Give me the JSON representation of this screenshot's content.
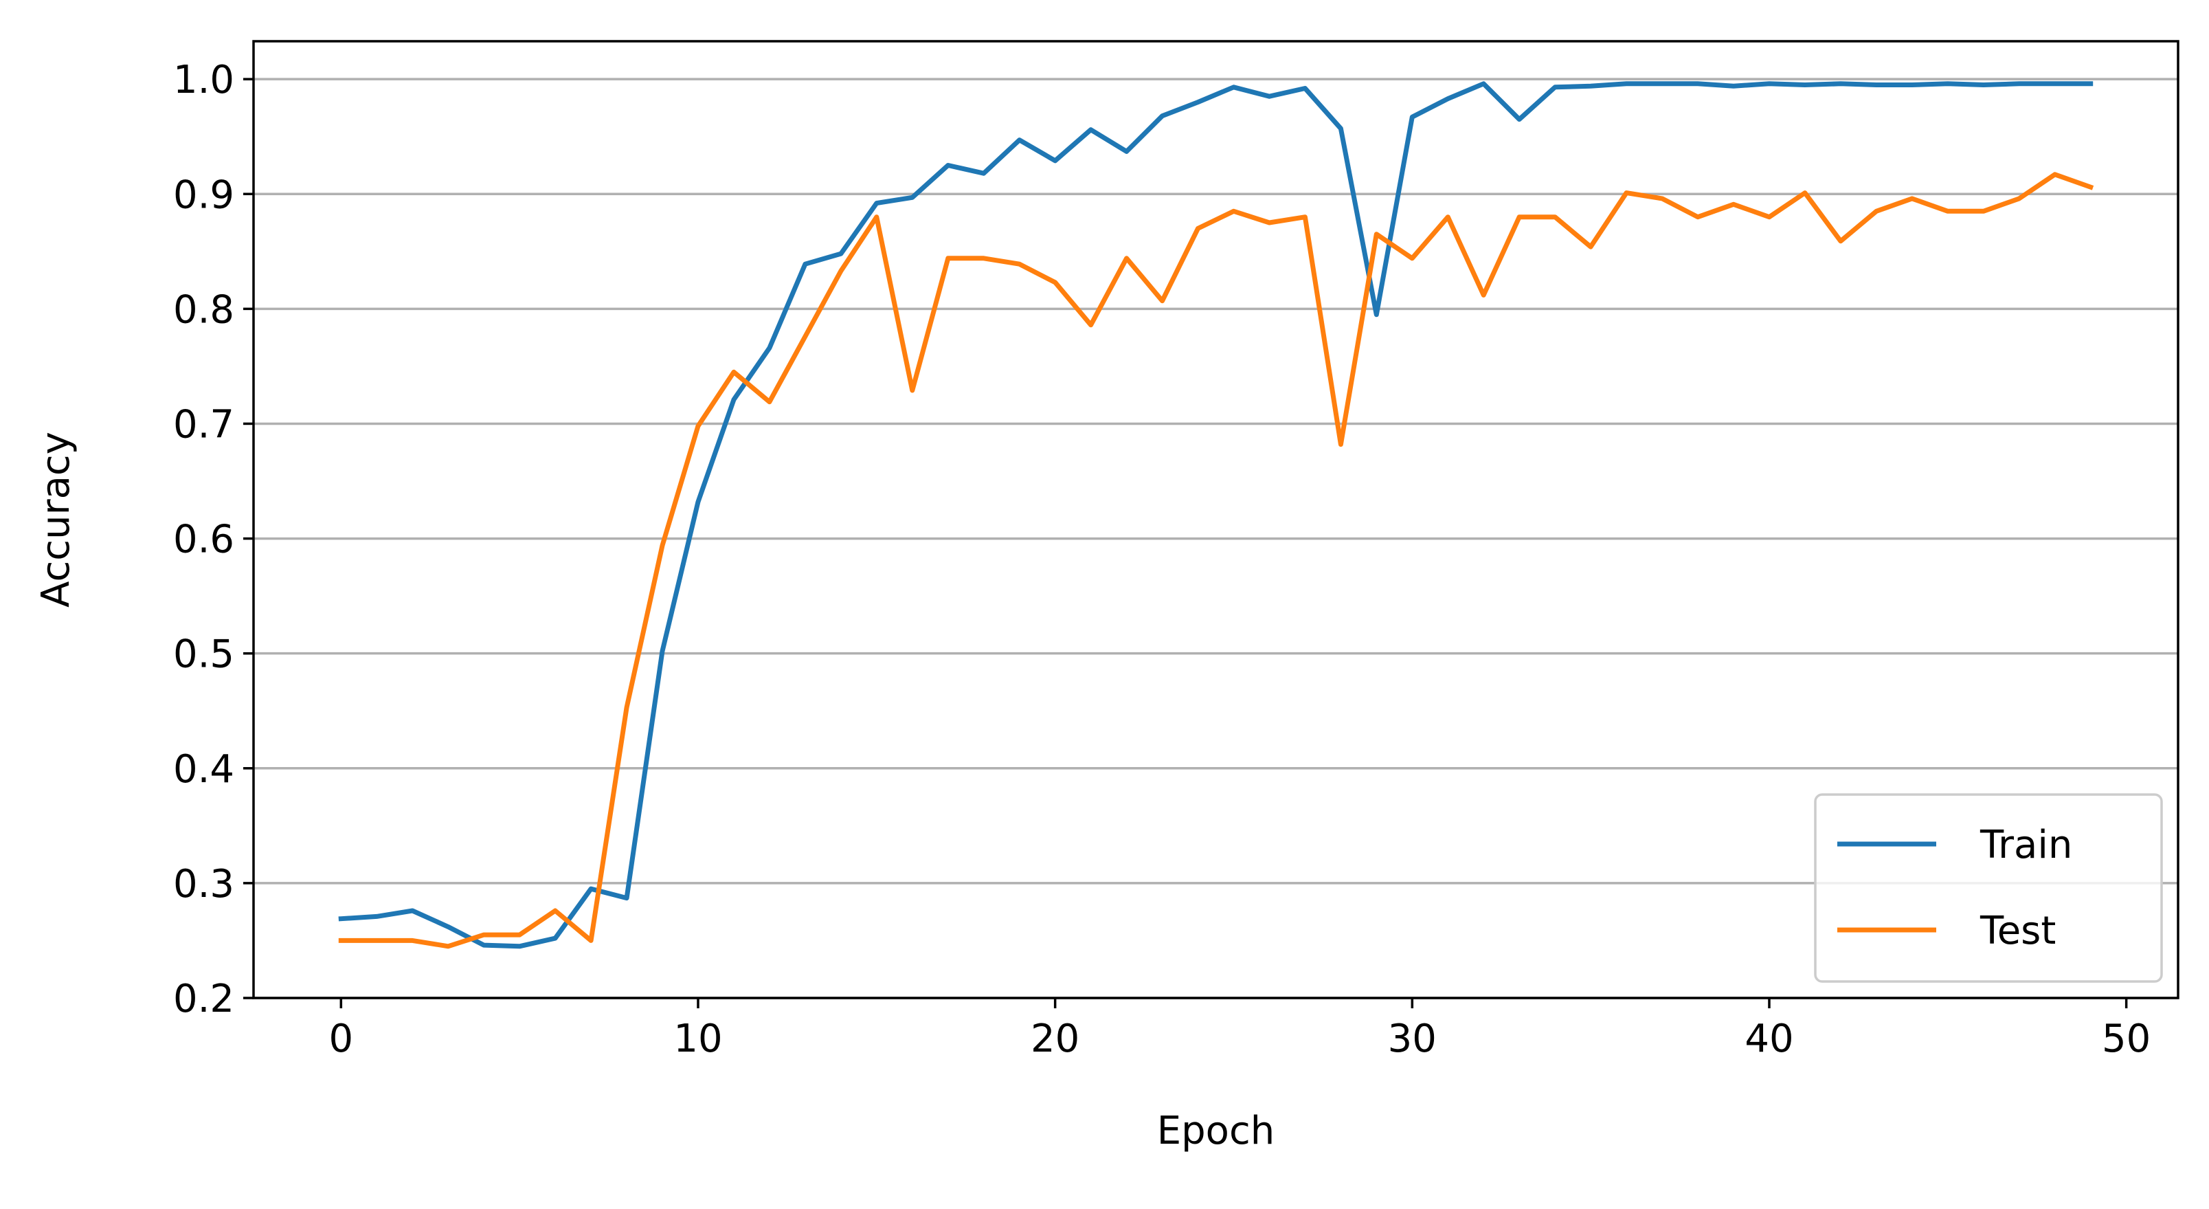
{
  "chart_data": {
    "type": "line",
    "xlabel": "Epoch",
    "ylabel": "Accuracy",
    "xlim": [
      -2.45,
      51.45
    ],
    "ylim": [
      0.2,
      1.033
    ],
    "xticks": [
      0,
      10,
      20,
      30,
      40,
      50
    ],
    "yticks": [
      0.2,
      0.3,
      0.4,
      0.5,
      0.6,
      0.7,
      0.8,
      0.9,
      1.0
    ],
    "xtick_labels": [
      "0",
      "10",
      "20",
      "30",
      "40",
      "50"
    ],
    "ytick_labels": [
      "0.2",
      "0.3",
      "0.4",
      "0.5",
      "0.6",
      "0.7",
      "0.8",
      "0.9",
      "1.0"
    ],
    "grid": "y",
    "legend_position": "lower-right",
    "x": [
      0,
      1,
      2,
      3,
      4,
      5,
      6,
      7,
      8,
      9,
      10,
      11,
      12,
      13,
      14,
      15,
      16,
      17,
      18,
      19,
      20,
      21,
      22,
      23,
      24,
      25,
      26,
      27,
      28,
      29,
      30,
      31,
      32,
      33,
      34,
      35,
      36,
      37,
      38,
      39,
      40,
      41,
      42,
      43,
      44,
      45,
      46,
      47,
      48,
      49
    ],
    "series": [
      {
        "name": "Train",
        "color": "#1f77b4",
        "values": [
          0.269,
          0.271,
          0.276,
          0.262,
          0.246,
          0.245,
          0.252,
          0.295,
          0.287,
          0.502,
          0.632,
          0.721,
          0.766,
          0.839,
          0.848,
          0.892,
          0.897,
          0.925,
          0.918,
          0.947,
          0.929,
          0.956,
          0.937,
          0.968,
          0.98,
          0.993,
          0.985,
          0.992,
          0.957,
          0.795,
          0.967,
          0.983,
          0.996,
          0.965,
          0.993,
          0.994,
          0.996,
          0.996,
          0.996,
          0.994,
          0.996,
          0.995,
          0.996,
          0.995,
          0.995,
          0.996,
          0.995,
          0.996,
          0.996,
          0.996
        ]
      },
      {
        "name": "Test",
        "color": "#ff7f0e",
        "values": [
          0.25,
          0.25,
          0.25,
          0.245,
          0.255,
          0.255,
          0.276,
          0.25,
          0.453,
          0.594,
          0.698,
          0.745,
          0.719,
          0.776,
          0.833,
          0.88,
          0.729,
          0.844,
          0.844,
          0.839,
          0.823,
          0.786,
          0.844,
          0.807,
          0.87,
          0.885,
          0.875,
          0.88,
          0.682,
          0.865,
          0.844,
          0.88,
          0.812,
          0.88,
          0.88,
          0.854,
          0.901,
          0.896,
          0.88,
          0.891,
          0.88,
          0.901,
          0.859,
          0.885,
          0.896,
          0.885,
          0.885,
          0.896,
          0.917,
          0.906
        ]
      }
    ]
  }
}
